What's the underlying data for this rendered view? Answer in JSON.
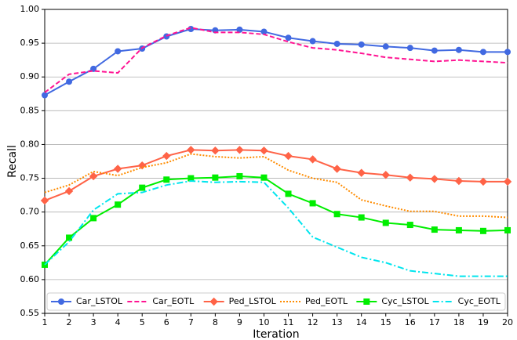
{
  "chart_data": {
    "type": "line",
    "x_label": "Iteration",
    "y_label": "Recall",
    "x": [
      1,
      2,
      3,
      4,
      5,
      6,
      7,
      8,
      9,
      10,
      11,
      12,
      13,
      14,
      15,
      16,
      17,
      18,
      19,
      20
    ],
    "xlim": [
      1,
      20
    ],
    "xticks": [
      1,
      2,
      3,
      4,
      5,
      6,
      7,
      8,
      9,
      10,
      11,
      12,
      13,
      14,
      15,
      16,
      17,
      18,
      19,
      20
    ],
    "ylim": [
      0.55,
      1.0
    ],
    "yticks": [
      {
        "value": 0.55,
        "label": "0.55"
      },
      {
        "value": 0.6,
        "label": "0.60"
      },
      {
        "value": 0.65,
        "label": "0.65"
      },
      {
        "value": 0.7,
        "label": "0.70"
      },
      {
        "value": 0.75,
        "label": "0.75"
      },
      {
        "value": 0.8,
        "label": "0.80"
      },
      {
        "value": 0.85,
        "label": "0.85"
      },
      {
        "value": 0.9,
        "label": "0.90"
      },
      {
        "value": 0.95,
        "label": "0.95"
      },
      {
        "value": 1.0,
        "label": "1.00"
      }
    ],
    "grid": true,
    "legend_position": "bottom",
    "series": [
      {
        "name": "Car_LSTOL",
        "color": "#4169e1",
        "marker": "circle",
        "line_style": "solid",
        "values": [
          0.873,
          0.893,
          0.912,
          0.938,
          0.942,
          0.96,
          0.971,
          0.969,
          0.97,
          0.967,
          0.958,
          0.953,
          0.949,
          0.948,
          0.945,
          0.943,
          0.939,
          0.94,
          0.937,
          0.937
        ]
      },
      {
        "name": "Car_EOTL",
        "color": "#ff1493",
        "marker": "none",
        "line_style": "dashed",
        "values": [
          0.877,
          0.904,
          0.909,
          0.906,
          0.943,
          0.961,
          0.973,
          0.966,
          0.966,
          0.963,
          0.952,
          0.943,
          0.94,
          0.935,
          0.929,
          0.926,
          0.923,
          0.925,
          0.923,
          0.921
        ]
      },
      {
        "name": "Ped_LSTOL",
        "color": "#ff6347",
        "marker": "diamond",
        "line_style": "solid",
        "values": [
          0.717,
          0.731,
          0.753,
          0.764,
          0.769,
          0.783,
          0.792,
          0.791,
          0.792,
          0.791,
          0.783,
          0.778,
          0.764,
          0.758,
          0.755,
          0.751,
          0.749,
          0.746,
          0.745,
          0.745
        ]
      },
      {
        "name": "Ped_EOTL",
        "color": "#ff8c00",
        "marker": "none",
        "line_style": "dotted",
        "values": [
          0.729,
          0.74,
          0.76,
          0.754,
          0.766,
          0.773,
          0.786,
          0.782,
          0.78,
          0.782,
          0.762,
          0.75,
          0.744,
          0.718,
          0.709,
          0.701,
          0.701,
          0.694,
          0.694,
          0.692
        ]
      },
      {
        "name": "Cyc_LSTOL",
        "color": "#00ee00",
        "marker": "square",
        "line_style": "solid",
        "values": [
          0.622,
          0.662,
          0.691,
          0.711,
          0.736,
          0.748,
          0.75,
          0.751,
          0.753,
          0.751,
          0.727,
          0.713,
          0.697,
          0.692,
          0.684,
          0.681,
          0.674,
          0.673,
          0.672,
          0.673
        ]
      },
      {
        "name": "Cyc_EOTL",
        "color": "#00e5ee",
        "marker": "none",
        "line_style": "dashdot",
        "values": [
          0.622,
          0.656,
          0.703,
          0.727,
          0.729,
          0.74,
          0.746,
          0.744,
          0.745,
          0.744,
          0.706,
          0.663,
          0.648,
          0.633,
          0.625,
          0.613,
          0.609,
          0.605,
          0.605,
          0.605
        ]
      }
    ]
  }
}
